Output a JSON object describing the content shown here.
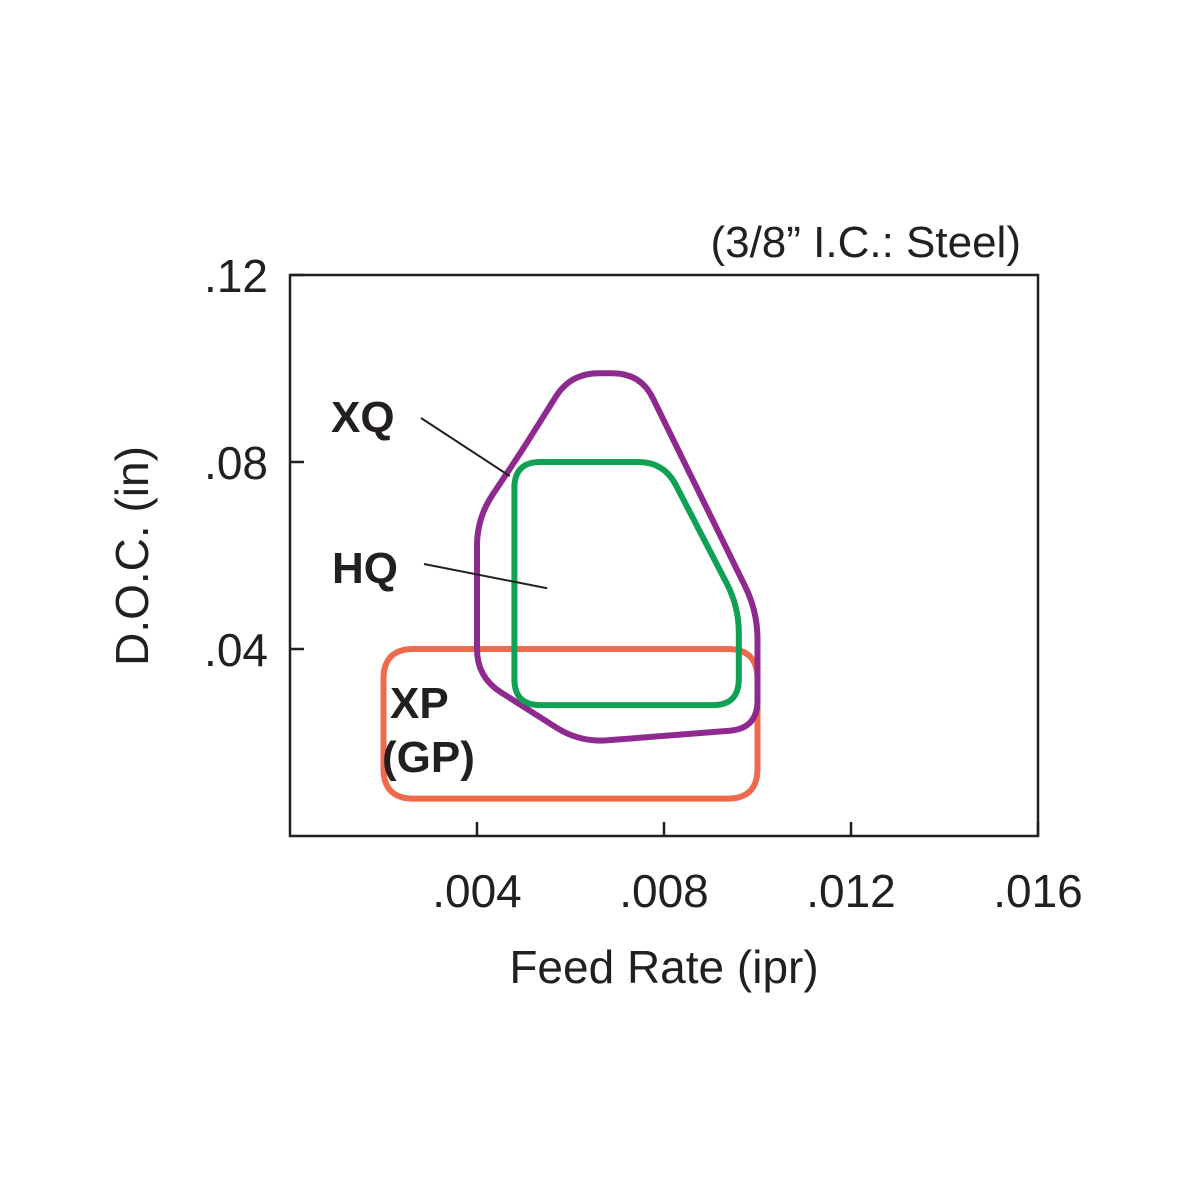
{
  "chart_data": {
    "type": "area",
    "subtitle": "(3/8” I.C.: Steel)",
    "xlabel": "Feed Rate (ipr)",
    "ylabel": "D.O.C. (in)",
    "xlim": [
      0,
      0.016
    ],
    "ylim": [
      0,
      0.12
    ],
    "x_tick_values": [
      0.004,
      0.008,
      0.012,
      0.016
    ],
    "x_tick_labels": [
      ".004",
      ".008",
      ".012",
      ".016"
    ],
    "y_tick_values": [
      0.04,
      0.08,
      0.12
    ],
    "y_tick_labels": [
      ".04",
      ".08",
      ".12"
    ],
    "grid": false,
    "series": [
      {
        "name": "XQ",
        "color": "#8e2a8f",
        "outline": [
          [
            0.004,
            0.068
          ],
          [
            0.005,
            0.083
          ],
          [
            0.006,
            0.099
          ],
          [
            0.0075,
            0.099
          ],
          [
            0.01,
            0.048
          ],
          [
            0.01,
            0.023
          ],
          [
            0.0062,
            0.02
          ],
          [
            0.004,
            0.034
          ]
        ]
      },
      {
        "name": "HQ",
        "color": "#10a154",
        "outline": [
          [
            0.0048,
            0.08
          ],
          [
            0.008,
            0.08
          ],
          [
            0.0096,
            0.049
          ],
          [
            0.0096,
            0.028
          ],
          [
            0.0048,
            0.028
          ]
        ]
      },
      {
        "name": "XP (GP)",
        "color": "#ef6a4c",
        "outline": [
          [
            0.002,
            0.04
          ],
          [
            0.01,
            0.04
          ],
          [
            0.01,
            0.008
          ],
          [
            0.002,
            0.008
          ]
        ]
      }
    ],
    "annotations": [
      {
        "series": "XQ",
        "text": "XQ"
      },
      {
        "series": "HQ",
        "text": "HQ"
      },
      {
        "series": "XP (GP)",
        "lines": [
          "XP",
          "(GP)"
        ]
      }
    ]
  }
}
